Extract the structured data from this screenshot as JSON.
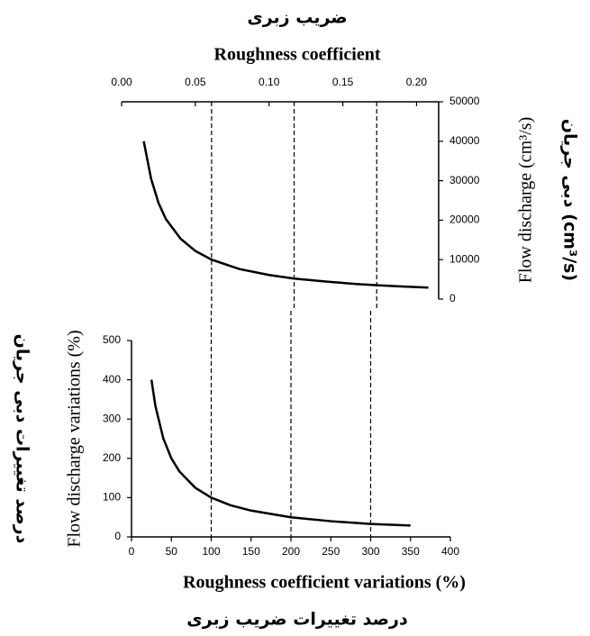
{
  "chart_data": [
    {
      "type": "line",
      "x_label": "Roughness coefficient",
      "x_label_fa": "ضریب زبری",
      "y_label": "Flow discharge (cm³/s)",
      "y_label_fa": "دبی جریان (cm³/s)",
      "x_axis_position": "top",
      "y_axis_position": "right",
      "x": [
        0.015,
        0.02,
        0.025,
        0.03,
        0.04,
        0.05,
        0.061,
        0.08,
        0.1,
        0.117,
        0.14,
        0.16,
        0.173,
        0.19,
        0.208
      ],
      "values": [
        40000,
        30500,
        24400,
        20300,
        15300,
        12200,
        10000,
        7600,
        6100,
        5200,
        4400,
        3800,
        3500,
        3200,
        2900
      ],
      "color": "#000000",
      "xlim": [
        0,
        0.215
      ],
      "xticks": [
        {
          "value": 0,
          "label": "0.00"
        },
        {
          "value": 0.05,
          "label": "0.05"
        },
        {
          "value": 0.1,
          "label": "0.10"
        },
        {
          "value": 0.15,
          "label": "0.15"
        },
        {
          "value": 0.2,
          "label": "0.20"
        }
      ],
      "ylim": [
        0,
        50000
      ],
      "yticks": [
        0,
        10000,
        20000,
        30000,
        40000,
        50000
      ],
      "reference_lines": [
        0.061,
        0.117,
        0.173
      ]
    },
    {
      "type": "line",
      "x_label": "Roughness coefficient variations (%)",
      "x_label_fa": "درصد تغییرات ضریب زبری",
      "y_label": "Flow discharge variations (%)",
      "y_label_fa": "درصد تغییرات دبی جریان",
      "x_axis_position": "bottom",
      "y_axis_position": "left",
      "x": [
        25,
        30,
        40,
        50,
        60,
        80,
        100,
        125,
        150,
        200,
        250,
        300,
        350
      ],
      "values": [
        400,
        333,
        250,
        200,
        167,
        125,
        100,
        80,
        67,
        50,
        40,
        33,
        29
      ],
      "color": "#000000",
      "xlim": [
        0,
        400
      ],
      "xticks": [
        0,
        50,
        100,
        150,
        200,
        250,
        300,
        350,
        400
      ],
      "ylim": [
        0,
        500
      ],
      "yticks": [
        0,
        100,
        200,
        300,
        400,
        500
      ],
      "reference_lines": [
        100,
        200,
        300
      ]
    }
  ]
}
